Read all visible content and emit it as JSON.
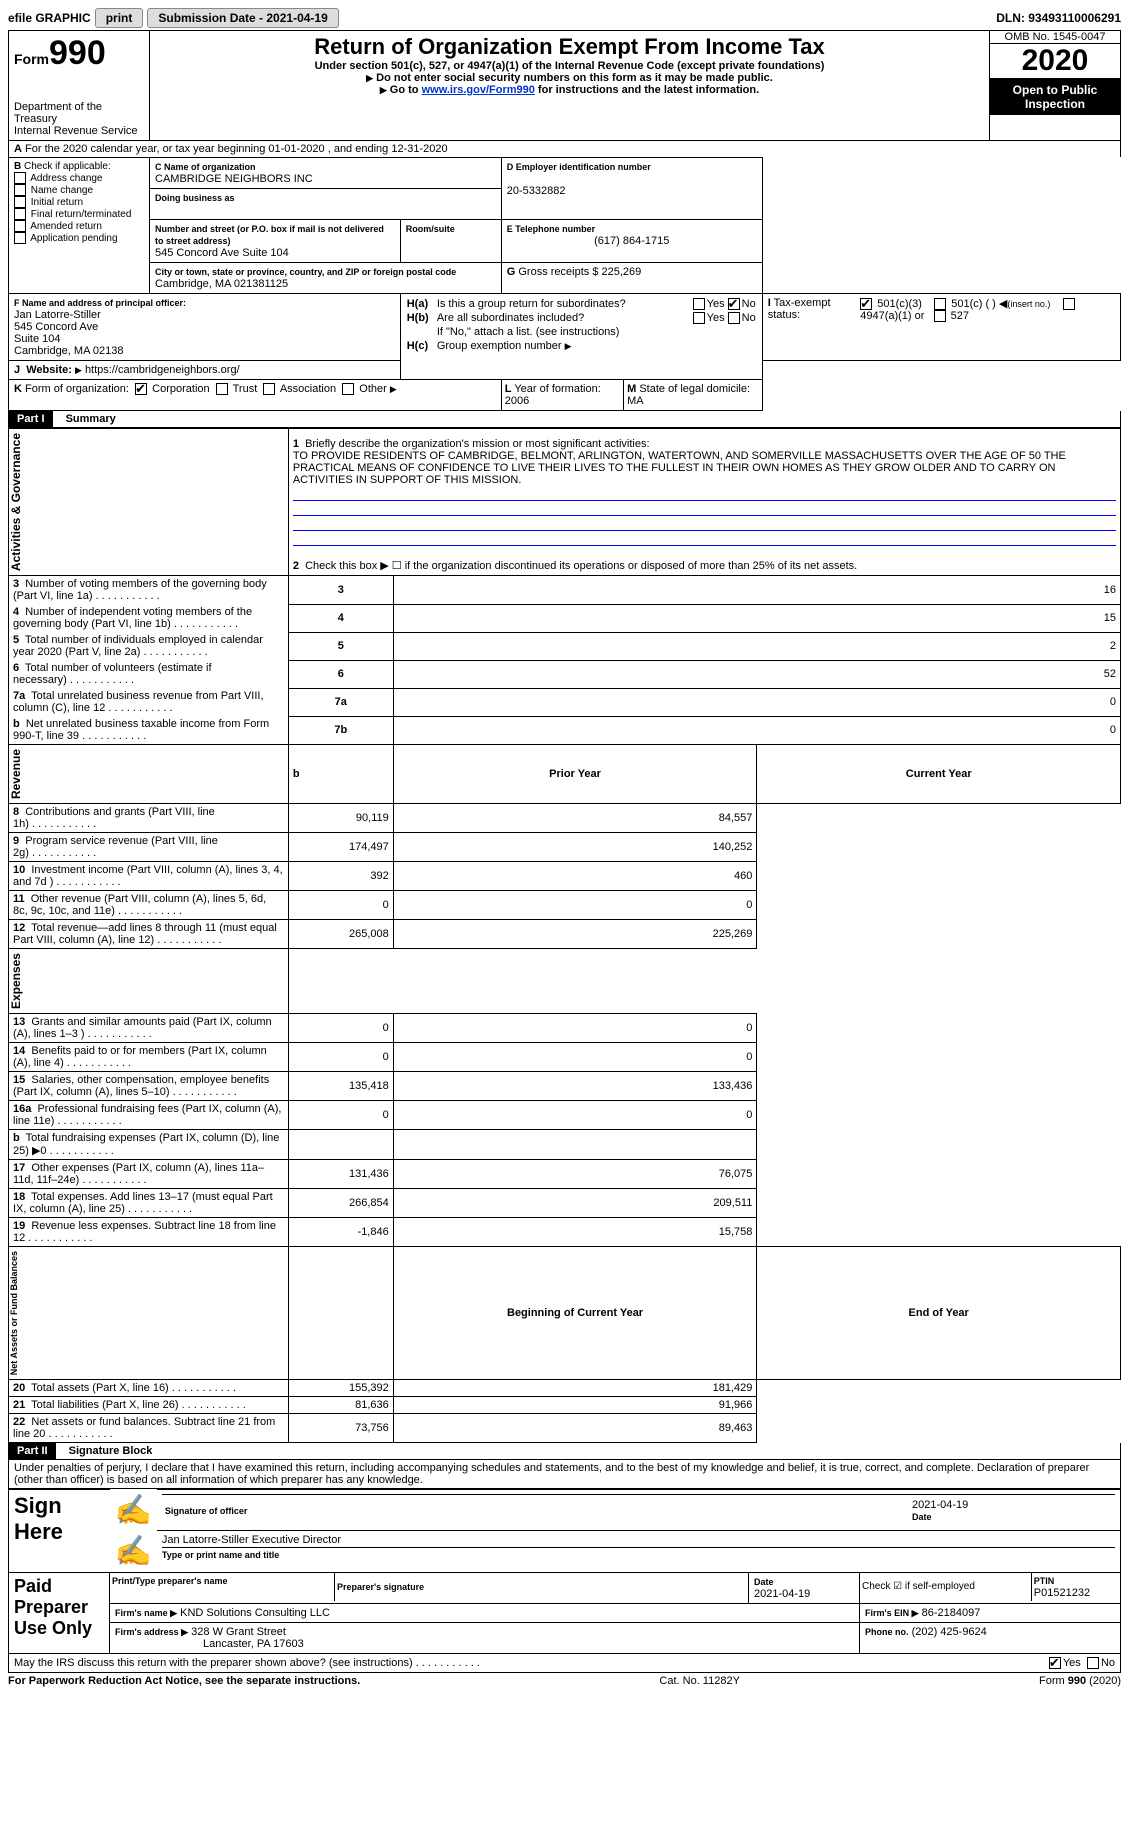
{
  "top": {
    "efile": "efile GRAPHIC",
    "print": "print",
    "subdate_label": "Submission Date - 2021-04-19",
    "dln": "DLN: 93493110006291"
  },
  "header": {
    "form_word": "Form",
    "form_no": "990",
    "dept": "Department of the Treasury\nInternal Revenue Service",
    "title": "Return of Organization Exempt From Income Tax",
    "sub": "Under section 501(c), 527, or 4947(a)(1) of the Internal Revenue Code (except private foundations)",
    "warn": "Do not enter social security numbers on this form as it may be made public.",
    "goto_pre": "Go to ",
    "goto_link": "www.irs.gov/Form990",
    "goto_post": " for instructions and the latest information.",
    "omb": "OMB No. 1545-0047",
    "year": "2020",
    "open": "Open to Public Inspection"
  },
  "A": {
    "text": "For the 2020 calendar year, or tax year beginning 01-01-2020    , and ending 12-31-2020"
  },
  "B": {
    "label": "Check if applicable:",
    "items": [
      "Address change",
      "Name change",
      "Initial return",
      "Final return/terminated",
      "Amended return",
      "Application pending"
    ]
  },
  "C": {
    "name_lbl": "Name of organization",
    "name": "CAMBRIDGE NEIGHBORS INC",
    "dba_lbl": "Doing business as",
    "addr_lbl": "Number and street (or P.O. box if mail is not delivered to street address)",
    "addr": "545 Concord Ave Suite 104",
    "room_lbl": "Room/suite",
    "city_lbl": "City or town, state or province, country, and ZIP or foreign postal code",
    "city": "Cambridge, MA  021381125"
  },
  "D": {
    "lbl": "Employer identification number",
    "val": "20-5332882"
  },
  "E": {
    "lbl": "Telephone number",
    "val": "(617) 864-1715"
  },
  "G": {
    "lbl": "Gross receipts $",
    "val": "225,269"
  },
  "F": {
    "lbl": "Name and address of principal officer:",
    "l1": "Jan Latorre-Stiller",
    "l2": "545 Concord Ave",
    "l3": "Suite 104",
    "l4": "Cambridge, MA  02138"
  },
  "H": {
    "a": "Is this a group return for subordinates?",
    "b": "Are all subordinates included?",
    "b2": "If \"No,\" attach a list. (see instructions)",
    "c": "Group exemption number"
  },
  "I": {
    "lbl": "Tax-exempt status:",
    "a": "501(c)(3)",
    "b": "501(c) (   )",
    "bins": "(insert no.)",
    "c": "4947(a)(1) or",
    "d": "527"
  },
  "J": {
    "lbl": "Website:",
    "val": "https://cambridgeneighbors.org/"
  },
  "K": {
    "lbl": "Form of organization:",
    "a": "Corporation",
    "b": "Trust",
    "c": "Association",
    "d": "Other"
  },
  "L": {
    "lbl": "Year of formation:",
    "val": "2006"
  },
  "M": {
    "lbl": "State of legal domicile:",
    "val": "MA"
  },
  "part1": {
    "hdr": "Part I",
    "title": "Summary",
    "q1": "Briefly describe the organization's mission or most significant activities:",
    "mission": "TO PROVIDE RESIDENTS OF CAMBRIDGE, BELMONT, ARLINGTON, WATERTOWN, AND SOMERVILLE MASSACHUSETTS OVER THE AGE OF 50 THE PRACTICAL MEANS OF CONFIDENCE TO LIVE THEIR LIVES TO THE FULLEST IN THEIR OWN HOMES AS THEY GROW OLDER AND TO CARRY ON ACTIVITIES IN SUPPORT OF THIS MISSION.",
    "q2": "Check this box ▶ ☐  if the organization discontinued its operations or disposed of more than 25% of its net assets.",
    "rows_ag": [
      {
        "n": "3",
        "t": "Number of voting members of the governing body (Part VI, line 1a)",
        "box": "3",
        "v": "16"
      },
      {
        "n": "4",
        "t": "Number of independent voting members of the governing body (Part VI, line 1b)",
        "box": "4",
        "v": "15"
      },
      {
        "n": "5",
        "t": "Total number of individuals employed in calendar year 2020 (Part V, line 2a)",
        "box": "5",
        "v": "2"
      },
      {
        "n": "6",
        "t": "Total number of volunteers (estimate if necessary)",
        "box": "6",
        "v": "52"
      },
      {
        "n": "7a",
        "t": "Total unrelated business revenue from Part VIII, column (C), line 12",
        "box": "7a",
        "v": "0"
      },
      {
        "n": "b",
        "t": "Net unrelated business taxable income from Form 990-T, line 39",
        "box": "7b",
        "v": "0"
      }
    ],
    "col_prior": "Prior Year",
    "col_curr": "Current Year",
    "rows_rev": [
      {
        "n": "8",
        "t": "Contributions and grants (Part VIII, line 1h)",
        "p": "90,119",
        "c": "84,557"
      },
      {
        "n": "9",
        "t": "Program service revenue (Part VIII, line 2g)",
        "p": "174,497",
        "c": "140,252"
      },
      {
        "n": "10",
        "t": "Investment income (Part VIII, column (A), lines 3, 4, and 7d )",
        "p": "392",
        "c": "460"
      },
      {
        "n": "11",
        "t": "Other revenue (Part VIII, column (A), lines 5, 6d, 8c, 9c, 10c, and 11e)",
        "p": "0",
        "c": "0"
      },
      {
        "n": "12",
        "t": "Total revenue—add lines 8 through 11 (must equal Part VIII, column (A), line 12)",
        "p": "265,008",
        "c": "225,269"
      }
    ],
    "rows_exp": [
      {
        "n": "13",
        "t": "Grants and similar amounts paid (Part IX, column (A), lines 1–3 )",
        "p": "0",
        "c": "0"
      },
      {
        "n": "14",
        "t": "Benefits paid to or for members (Part IX, column (A), line 4)",
        "p": "0",
        "c": "0"
      },
      {
        "n": "15",
        "t": "Salaries, other compensation, employee benefits (Part IX, column (A), lines 5–10)",
        "p": "135,418",
        "c": "133,436"
      },
      {
        "n": "16a",
        "t": "Professional fundraising fees (Part IX, column (A), line 11e)",
        "p": "0",
        "c": "0"
      },
      {
        "n": "b",
        "t": "Total fundraising expenses (Part IX, column (D), line 25) ▶0",
        "p": "",
        "c": "",
        "shade": true
      },
      {
        "n": "17",
        "t": "Other expenses (Part IX, column (A), lines 11a–11d, 11f–24e)",
        "p": "131,436",
        "c": "76,075"
      },
      {
        "n": "18",
        "t": "Total expenses. Add lines 13–17 (must equal Part IX, column (A), line 25)",
        "p": "266,854",
        "c": "209,511"
      },
      {
        "n": "19",
        "t": "Revenue less expenses. Subtract line 18 from line 12",
        "p": "-1,846",
        "c": "15,758"
      }
    ],
    "col_beg": "Beginning of Current Year",
    "col_end": "End of Year",
    "rows_net": [
      {
        "n": "20",
        "t": "Total assets (Part X, line 16)",
        "p": "155,392",
        "c": "181,429"
      },
      {
        "n": "21",
        "t": "Total liabilities (Part X, line 26)",
        "p": "81,636",
        "c": "91,966"
      },
      {
        "n": "22",
        "t": "Net assets or fund balances. Subtract line 21 from line 20",
        "p": "73,756",
        "c": "89,463"
      }
    ],
    "side_ag": "Activities & Governance",
    "side_rev": "Revenue",
    "side_exp": "Expenses",
    "side_net": "Net Assets or Fund Balances"
  },
  "part2": {
    "hdr": "Part II",
    "title": "Signature Block",
    "decl": "Under penalties of perjury, I declare that I have examined this return, including accompanying schedules and statements, and to the best of my knowledge and belief, it is true, correct, and complete. Declaration of preparer (other than officer) is based on all information of which preparer has any knowledge.",
    "sign_here": "Sign Here",
    "sig_officer": "Signature of officer",
    "sig_date": "2021-04-19",
    "officer_name": "Jan Latorre-Stiller  Executive Director",
    "type_name": "Type or print name and title",
    "paid": "Paid Preparer Use Only",
    "prep_name_lbl": "Print/Type preparer's name",
    "prep_sig_lbl": "Preparer's signature",
    "prep_date_lbl": "Date",
    "prep_date": "2021-04-19",
    "check_self": "Check ☑ if self-employed",
    "ptin_lbl": "PTIN",
    "ptin": "P01521232",
    "firm_name_lbl": "Firm's name    ▶",
    "firm_name": "KND Solutions Consulting LLC",
    "firm_ein_lbl": "Firm's EIN ▶",
    "firm_ein": "86-2184097",
    "firm_addr_lbl": "Firm's address ▶",
    "firm_addr1": "328 W Grant Street",
    "firm_addr2": "Lancaster, PA  17603",
    "phone_lbl": "Phone no.",
    "phone": "(202) 425-9624",
    "may_irs": "May the IRS discuss this return with the preparer shown above? (see instructions)",
    "yes": "Yes",
    "no": "No"
  },
  "footer": {
    "left": "For Paperwork Reduction Act Notice, see the separate instructions.",
    "mid": "Cat. No. 11282Y",
    "right": "Form 990 (2020)"
  }
}
